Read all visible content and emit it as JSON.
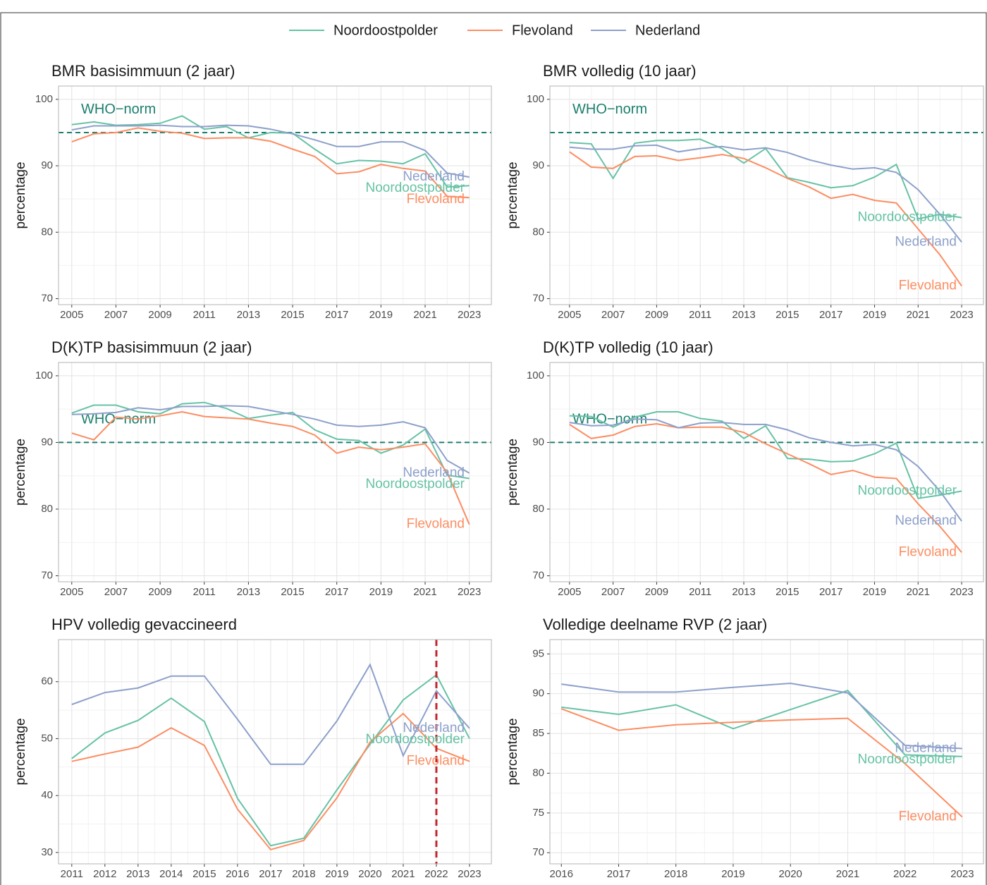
{
  "chart_data": [
    {
      "type": "line",
      "title": "BMR basisimmuun (2 jaar)",
      "y_label": "percentage",
      "x": [
        2005,
        2006,
        2007,
        2008,
        2009,
        2010,
        2011,
        2012,
        2013,
        2014,
        2015,
        2016,
        2017,
        2018,
        2019,
        2020,
        2021,
        2022,
        2023
      ],
      "xlim": [
        2004.4,
        2024.0
      ],
      "xticks": [
        2005,
        2007,
        2009,
        2011,
        2013,
        2015,
        2017,
        2019,
        2021,
        2023
      ],
      "ylim": [
        69.1,
        102.0
      ],
      "yticks": [
        70,
        80,
        90,
        100
      ],
      "grid": true,
      "reference_line": {
        "value": 95,
        "label": "WHO−norm",
        "color": "#1b7f6e"
      },
      "series": [
        {
          "name": "Noordoostpolder",
          "color": "#66c2a5",
          "values": [
            96.2,
            96.6,
            96.1,
            96.2,
            96.4,
            97.5,
            95.5,
            95.9,
            94.2,
            95.0,
            94.9,
            92.5,
            90.3,
            90.8,
            90.7,
            90.3,
            91.8,
            86.8,
            87.0
          ]
        },
        {
          "name": "Flevoland",
          "color": "#fc8d62",
          "values": [
            93.6,
            94.8,
            95.0,
            95.7,
            95.2,
            94.9,
            94.1,
            94.2,
            94.2,
            93.7,
            92.5,
            91.4,
            88.8,
            89.1,
            90.2,
            89.6,
            89.2,
            85.4,
            85.2
          ]
        },
        {
          "name": "Nederland",
          "color": "#8da0cb",
          "values": [
            95.4,
            96.0,
            96.0,
            96.0,
            96.1,
            95.9,
            95.9,
            96.1,
            96.0,
            95.5,
            94.8,
            93.9,
            92.9,
            92.9,
            93.6,
            93.6,
            92.3,
            88.9,
            88.3
          ]
        }
      ]
    },
    {
      "type": "line",
      "title": "BMR volledig (10 jaar)",
      "y_label": "percentage",
      "x": [
        2005,
        2006,
        2007,
        2008,
        2009,
        2010,
        2011,
        2012,
        2013,
        2014,
        2015,
        2016,
        2017,
        2018,
        2019,
        2020,
        2021,
        2022,
        2023
      ],
      "xlim": [
        2004.1,
        2024.0
      ],
      "xticks": [
        2005,
        2007,
        2009,
        2011,
        2013,
        2015,
        2017,
        2019,
        2021,
        2023
      ],
      "ylim": [
        69.1,
        102.0
      ],
      "yticks": [
        70,
        80,
        90,
        100
      ],
      "grid": true,
      "reference_line": {
        "value": 95,
        "label": "WHO−norm",
        "color": "#1b7f6e"
      },
      "series": [
        {
          "name": "Noordoostpolder",
          "color": "#66c2a5",
          "values": [
            93.5,
            93.3,
            88.1,
            93.4,
            93.8,
            93.8,
            94.0,
            92.6,
            90.4,
            92.6,
            88.2,
            87.5,
            86.7,
            87.0,
            88.3,
            90.2,
            82.0,
            82.7,
            82.2
          ]
        },
        {
          "name": "Flevoland",
          "color": "#fc8d62",
          "values": [
            92.1,
            89.8,
            89.6,
            91.4,
            91.5,
            90.8,
            91.2,
            91.7,
            91.1,
            89.7,
            88.1,
            86.8,
            85.1,
            85.7,
            84.8,
            84.4,
            80.5,
            76.6,
            71.9
          ]
        },
        {
          "name": "Nederland",
          "color": "#8da0cb",
          "values": [
            92.8,
            92.5,
            92.5,
            93.0,
            93.1,
            92.1,
            92.6,
            92.9,
            92.4,
            92.7,
            92.0,
            90.9,
            90.1,
            89.5,
            89.7,
            89.0,
            86.4,
            82.7,
            78.5
          ]
        }
      ]
    },
    {
      "type": "line",
      "title": "D(K)TP basisimmuun (2 jaar)",
      "y_label": "percentage",
      "x": [
        2005,
        2006,
        2007,
        2008,
        2009,
        2010,
        2011,
        2012,
        2013,
        2014,
        2015,
        2016,
        2017,
        2018,
        2019,
        2020,
        2021,
        2022,
        2023
      ],
      "xlim": [
        2004.4,
        2024.0
      ],
      "xticks": [
        2005,
        2007,
        2009,
        2011,
        2013,
        2015,
        2017,
        2019,
        2021,
        2023
      ],
      "ylim": [
        69.1,
        102.0
      ],
      "yticks": [
        70,
        80,
        90,
        100
      ],
      "grid": true,
      "reference_line": {
        "value": 90,
        "label": "WHO−norm",
        "color": "#1b7f6e"
      },
      "series": [
        {
          "name": "Noordoostpolder",
          "color": "#66c2a5",
          "values": [
            94.4,
            95.6,
            95.6,
            94.6,
            94.3,
            95.8,
            96.0,
            95.1,
            93.6,
            94.1,
            94.5,
            91.9,
            90.5,
            90.3,
            88.4,
            89.6,
            92.0,
            85.1,
            84.6
          ]
        },
        {
          "name": "Flevoland",
          "color": "#fc8d62",
          "values": [
            91.4,
            90.4,
            93.8,
            93.5,
            94.0,
            94.6,
            93.9,
            93.7,
            93.5,
            92.9,
            92.4,
            91.1,
            88.4,
            89.3,
            88.9,
            89.3,
            89.8,
            85.5,
            77.7
          ]
        },
        {
          "name": "Nederland",
          "color": "#8da0cb",
          "values": [
            94.2,
            94.3,
            94.5,
            95.2,
            94.9,
            95.4,
            95.4,
            95.5,
            95.4,
            94.8,
            94.2,
            93.5,
            92.6,
            92.4,
            92.6,
            93.1,
            92.2,
            87.3,
            85.4
          ]
        }
      ]
    },
    {
      "type": "line",
      "title": "D(K)TP volledig (10 jaar)",
      "y_label": "percentage",
      "x": [
        2005,
        2006,
        2007,
        2008,
        2009,
        2010,
        2011,
        2012,
        2013,
        2014,
        2015,
        2016,
        2017,
        2018,
        2019,
        2020,
        2021,
        2022,
        2023
      ],
      "xlim": [
        2004.1,
        2024.0
      ],
      "xticks": [
        2005,
        2007,
        2009,
        2011,
        2013,
        2015,
        2017,
        2019,
        2021,
        2023
      ],
      "ylim": [
        69.1,
        102.0
      ],
      "yticks": [
        70,
        80,
        90,
        100
      ],
      "grid": true,
      "reference_line": {
        "value": 90,
        "label": "WHO−norm",
        "color": "#1b7f6e"
      },
      "series": [
        {
          "name": "Noordoostpolder",
          "color": "#66c2a5",
          "values": [
            94.0,
            93.9,
            92.3,
            93.8,
            94.6,
            94.6,
            93.6,
            93.2,
            90.6,
            92.5,
            87.6,
            87.5,
            87.1,
            87.2,
            88.3,
            89.9,
            81.6,
            82.1,
            82.7
          ]
        },
        {
          "name": "Flevoland",
          "color": "#fc8d62",
          "values": [
            92.7,
            90.6,
            91.1,
            92.4,
            92.8,
            92.2,
            92.3,
            92.3,
            91.5,
            89.8,
            88.3,
            86.8,
            85.2,
            85.8,
            84.8,
            84.6,
            80.8,
            77.4,
            73.5
          ]
        },
        {
          "name": "Nederland",
          "color": "#8da0cb",
          "values": [
            93.0,
            92.5,
            92.6,
            93.5,
            93.4,
            92.2,
            92.9,
            93.0,
            92.7,
            92.7,
            91.9,
            90.7,
            90.0,
            89.5,
            89.7,
            88.9,
            86.4,
            82.7,
            78.2
          ]
        }
      ]
    },
    {
      "type": "line",
      "title": "HPV volledig gevaccineerd",
      "y_label": "percentage",
      "x": [
        2011,
        2012,
        2013,
        2014,
        2015,
        2016,
        2017,
        2018,
        2019,
        2020,
        2021,
        2022,
        2023
      ],
      "xlim": [
        2010.6,
        2023.66
      ],
      "xticks": [
        2011,
        2012,
        2013,
        2014,
        2015,
        2016,
        2017,
        2018,
        2019,
        2020,
        2021,
        2022,
        2023
      ],
      "ylim": [
        28.0,
        67.4
      ],
      "yticks": [
        30,
        40,
        50,
        60
      ],
      "grid": true,
      "vertical_line": {
        "value": 2022,
        "color": "#c0272d"
      },
      "series": [
        {
          "name": "Noordoostpolder",
          "color": "#66c2a5",
          "values": [
            46.5,
            51.0,
            53.2,
            57.1,
            53.0,
            39.5,
            31.2,
            32.5,
            41.0,
            49.0,
            56.8,
            61.2,
            50.0
          ]
        },
        {
          "name": "Flevoland",
          "color": "#fc8d62",
          "values": [
            46.0,
            47.3,
            48.5,
            51.9,
            48.8,
            37.6,
            30.5,
            32.1,
            39.6,
            49.4,
            54.4,
            48.3,
            46.0
          ]
        },
        {
          "name": "Nederland",
          "color": "#8da0cb",
          "values": [
            56.0,
            58.1,
            58.9,
            61.0,
            61.0,
            53.4,
            45.5,
            45.5,
            53.1,
            63.0,
            47.0,
            58.4,
            51.8
          ]
        }
      ]
    },
    {
      "type": "line",
      "title": "Volledige deelname RVP (2 jaar)",
      "y_label": "percentage",
      "x": [
        2016,
        2017,
        2018,
        2019,
        2020,
        2021,
        2022,
        2023
      ],
      "xlim": [
        2015.8,
        2023.37
      ],
      "xticks": [
        2016,
        2017,
        2018,
        2019,
        2020,
        2021,
        2022,
        2023
      ],
      "ylim": [
        68.6,
        96.8
      ],
      "yticks": [
        70,
        75,
        80,
        85,
        90,
        95
      ],
      "grid": true,
      "series": [
        {
          "name": "Noordoostpolder",
          "color": "#66c2a5",
          "values": [
            88.3,
            87.4,
            88.6,
            85.6,
            88.0,
            90.4,
            82.3,
            82.1
          ]
        },
        {
          "name": "Flevoland",
          "color": "#fc8d62",
          "values": [
            88.1,
            85.4,
            86.1,
            86.4,
            86.7,
            86.9,
            81.2,
            74.5
          ]
        },
        {
          "name": "Nederland",
          "color": "#8da0cb",
          "values": [
            91.2,
            90.2,
            90.2,
            90.8,
            91.3,
            90.1,
            83.5,
            83.1
          ]
        }
      ]
    }
  ]
}
